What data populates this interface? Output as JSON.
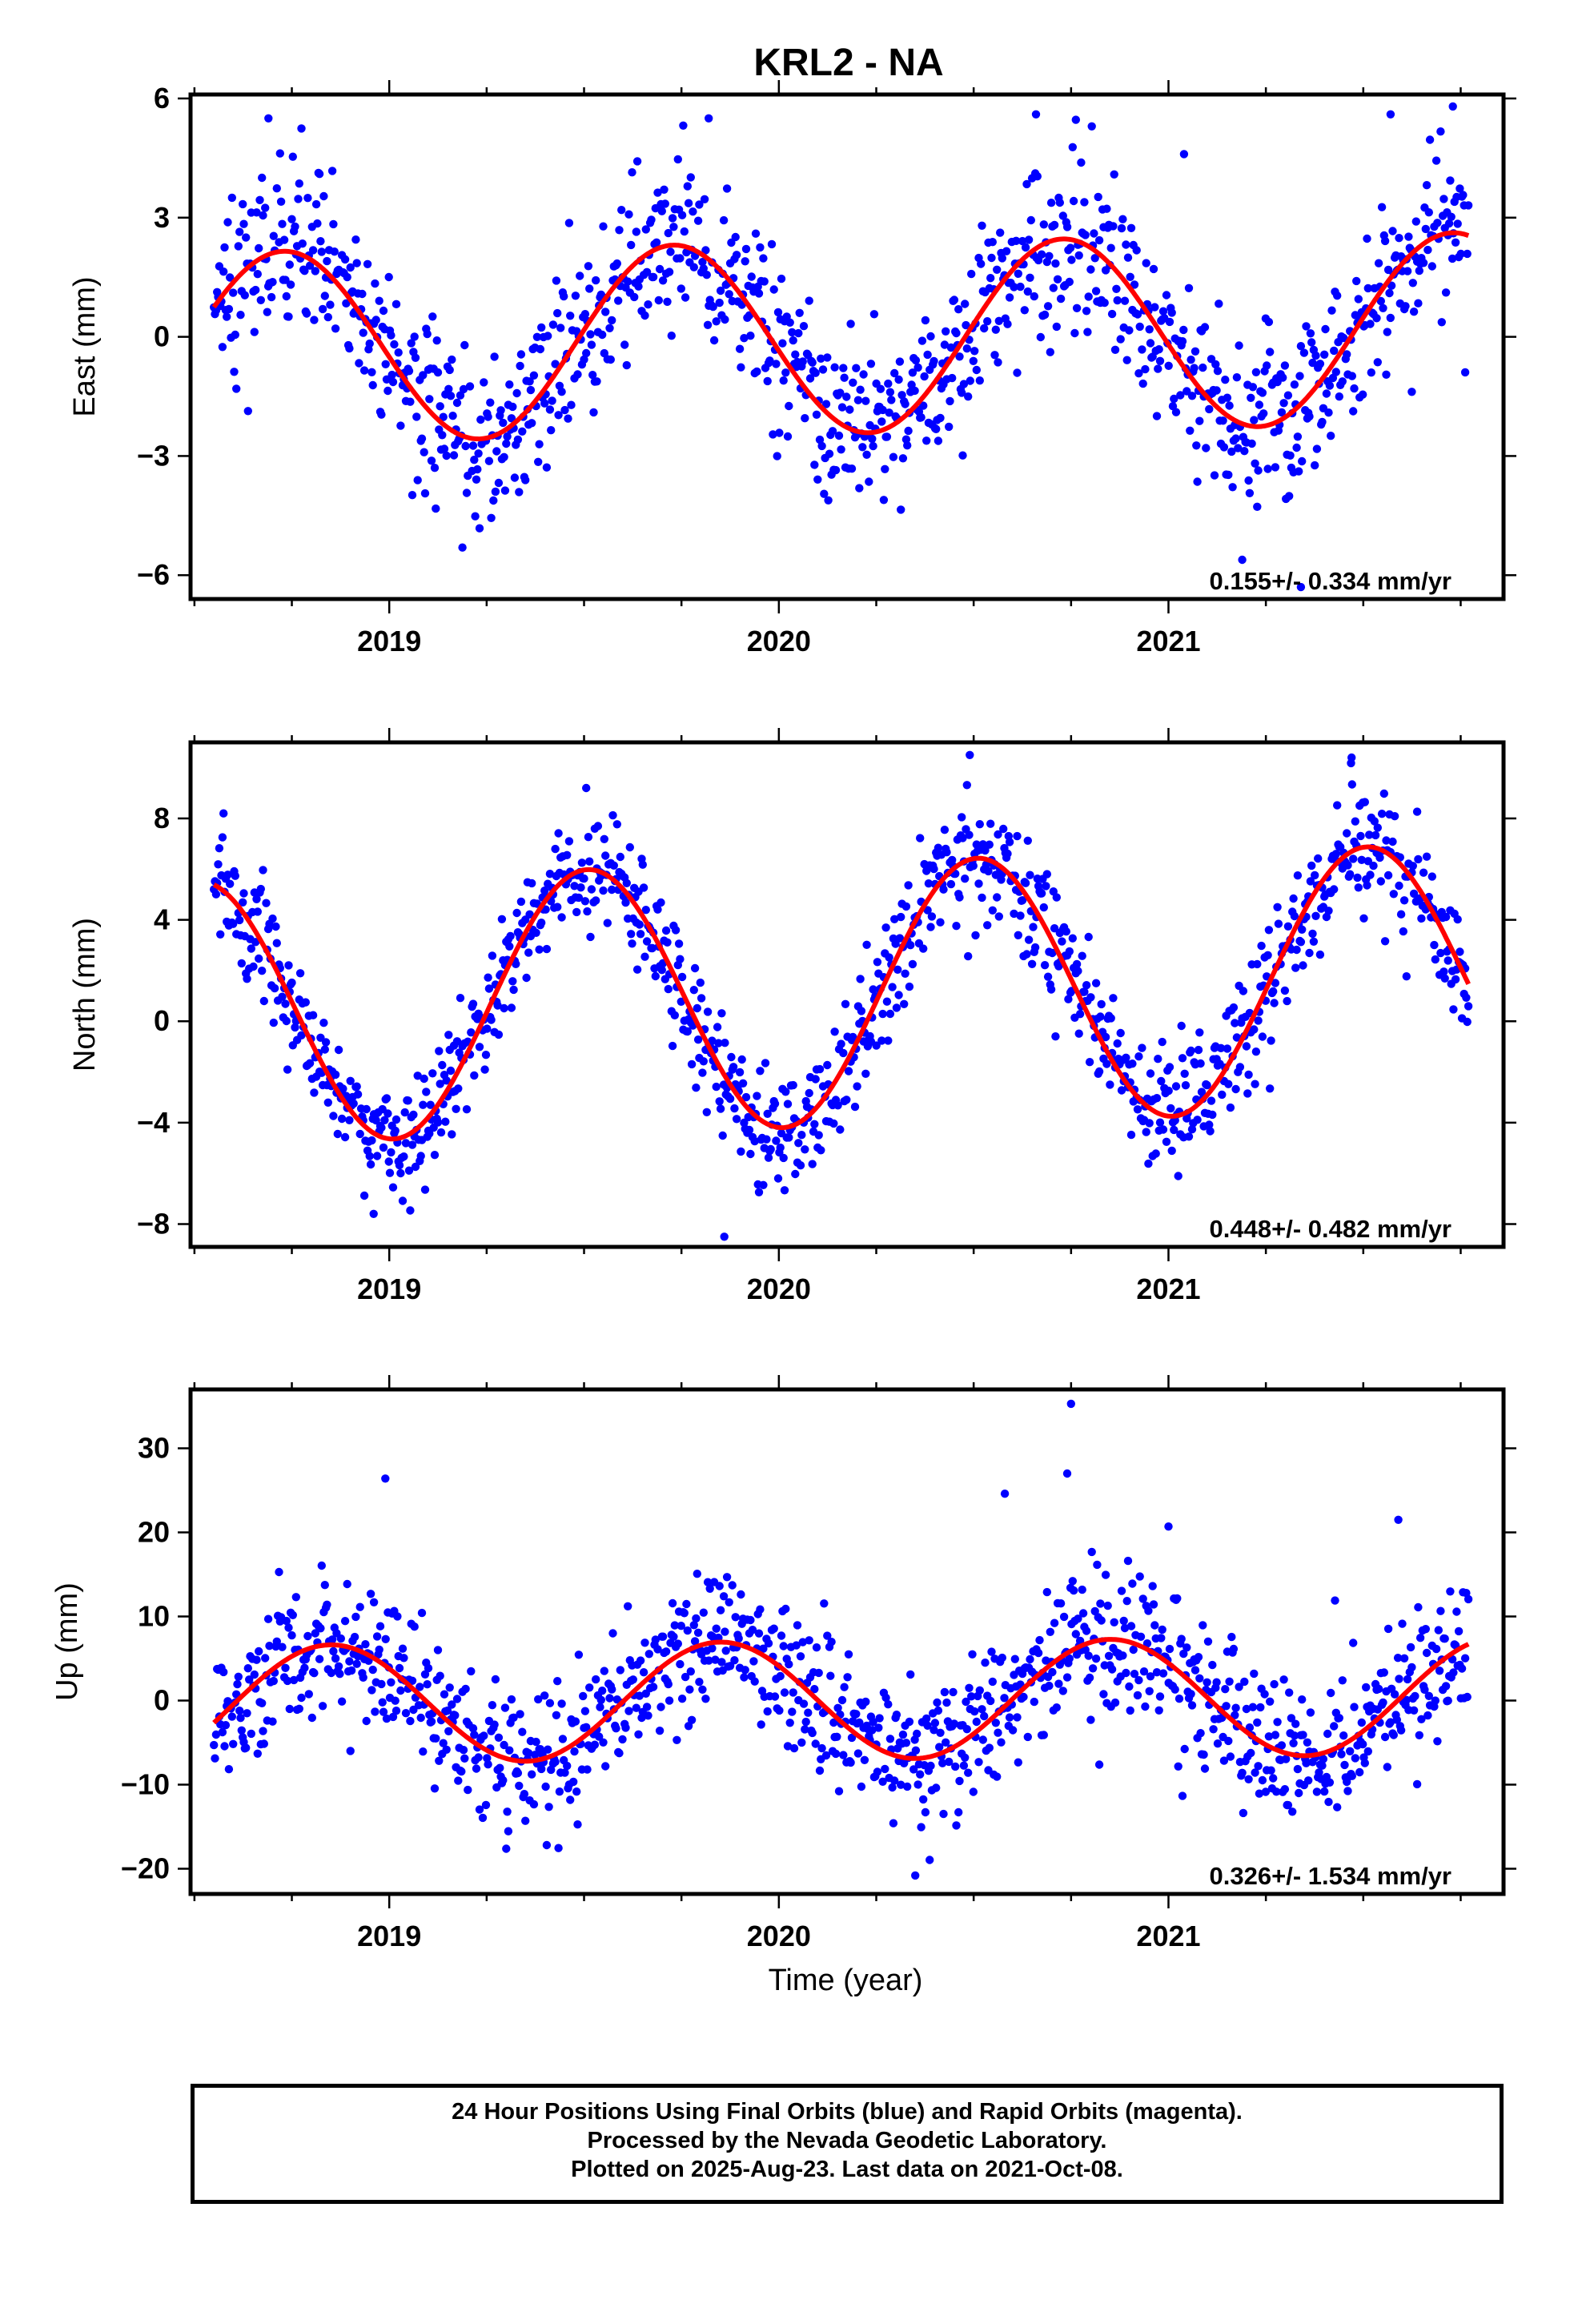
{
  "title": "KRL2 - NA",
  "colors": {
    "points": "#0000ff",
    "fit": "#ff0000",
    "frame": "#000000"
  },
  "x_axis": {
    "label": "Time (year)",
    "tick_labels": [
      "2019",
      "2020",
      "2021"
    ],
    "range": [
      2018.49,
      2021.86
    ]
  },
  "caption": {
    "lines": [
      "24 Hour Positions Using Final Orbits (blue) and Rapid Orbits (magenta).",
      "Processed by the Nevada Geodetic Laboratory.",
      "Plotted on 2025-Aug-23. Last data on 2021-Oct-08."
    ]
  },
  "chart_data": [
    {
      "type": "scatter",
      "component": "East",
      "ylabel": "East (mm)",
      "ylim": [
        -6.6,
        6.1
      ],
      "yticks": [
        6,
        3,
        0,
        -3,
        -6
      ],
      "ytick_labels": [
        "6",
        "3",
        "0",
        "−3",
        "−6"
      ],
      "rate_text": "0.155+/- 0.334 mm/yr",
      "x_start": 2018.55,
      "x_end": 2021.77,
      "seasonal_fit": {
        "offset": -0.05,
        "trend_mm_per_yr": 0.155,
        "amplitude": 2.4,
        "peak_year_fraction": 0.73,
        "noise": 1.1
      },
      "outliers": [
        [
          2018.69,
          5.5
        ],
        [
          2019.82,
          5.5
        ],
        [
          2020.66,
          5.6
        ],
        [
          2021.04,
          4.6
        ],
        [
          2021.57,
          5.6
        ],
        [
          2021.73,
          5.8
        ],
        [
          2021.34,
          -6.3
        ]
      ]
    },
    {
      "type": "scatter",
      "component": "North",
      "ylabel": "North (mm)",
      "ylim": [
        -8.9,
        11.0
      ],
      "yticks": [
        8,
        4,
        0,
        -4,
        -8
      ],
      "ytick_labels": [
        "8",
        "4",
        "0",
        "−4",
        "−8"
      ],
      "rate_text": "0.448+/- 0.482 mm/yr",
      "x_start": 2018.55,
      "x_end": 2021.77,
      "seasonal_fit": {
        "offset": 1.0,
        "trend_mm_per_yr": 0.448,
        "amplitude": 5.2,
        "peak_year_fraction": 0.51,
        "noise": 1.2
      },
      "outliers": [
        [
          2020.49,
          10.5
        ],
        [
          2021.47,
          10.4
        ],
        [
          2019.86,
          -8.5
        ],
        [
          2018.96,
          -7.6
        ]
      ]
    },
    {
      "type": "scatter",
      "component": "Up",
      "ylabel": "Up (mm)",
      "ylim": [
        -23.0,
        37.0
      ],
      "yticks": [
        30,
        20,
        10,
        0,
        -10,
        -20
      ],
      "ytick_labels": [
        "30",
        "20",
        "10",
        "0",
        "−10",
        "−20"
      ],
      "rate_text": "0.326+/- 1.534 mm/yr",
      "x_start": 2018.55,
      "x_end": 2021.77,
      "seasonal_fit": {
        "offset": 0.0,
        "trend_mm_per_yr": 0.326,
        "amplitude": 7.0,
        "peak_year_fraction": 0.85,
        "noise": 4.3
      },
      "outliers": [
        [
          2020.75,
          35.3
        ],
        [
          2020.74,
          27.0
        ],
        [
          2018.99,
          26.4
        ],
        [
          2020.58,
          24.6
        ],
        [
          2021.59,
          21.5
        ],
        [
          2021.0,
          20.7
        ],
        [
          2020.35,
          -20.8
        ]
      ]
    }
  ]
}
